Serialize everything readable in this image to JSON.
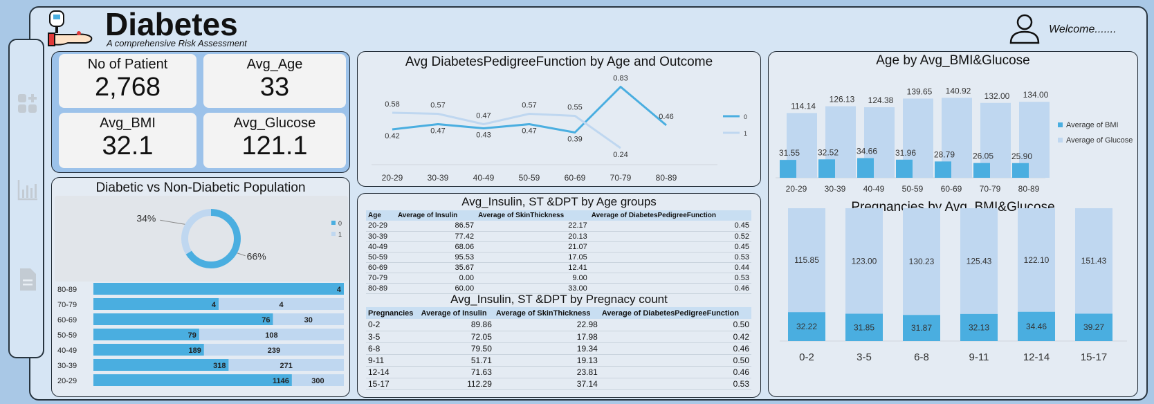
{
  "header": {
    "title": "Diabetes",
    "subtitle": "A comprehensive Risk Assessment",
    "welcome": "Welcome......."
  },
  "colors": {
    "primary": "#4aaee0",
    "secondary": "#bfd7f0",
    "panel": "#e4ebf3",
    "frame": "#d6e5f4"
  },
  "sidebar": {
    "items": [
      {
        "icon": "add-dashboard-icon"
      },
      {
        "icon": "bar-chart-icon"
      },
      {
        "icon": "document-icon"
      }
    ]
  },
  "kpis": [
    {
      "label": "No of Patient",
      "value": "2,768"
    },
    {
      "label": "Avg_Age",
      "value": "33"
    },
    {
      "label": "Avg_BMI",
      "value": "32.1"
    },
    {
      "label": "Avg_Glucose",
      "value": "121.1"
    }
  ],
  "population": {
    "title": "Diabetic vs Non-Diabetic Population",
    "donut": {
      "slices": [
        {
          "name": "0",
          "value": 66,
          "label": "66%"
        },
        {
          "name": "1",
          "value": 34,
          "label": "34%"
        }
      ]
    },
    "legend": [
      "0",
      "1"
    ],
    "age_bars": [
      {
        "age": "80-89",
        "v0": 4,
        "v1": 0,
        "l0": "4",
        "l1": ""
      },
      {
        "age": "70-79",
        "v0": 4,
        "v1": 4,
        "l0": "4",
        "l1": "4"
      },
      {
        "age": "60-69",
        "v0": 76,
        "v1": 30,
        "l0": "76",
        "l1": "30"
      },
      {
        "age": "50-59",
        "v0": 79,
        "v1": 108,
        "l0": "79",
        "l1": "108"
      },
      {
        "age": "40-49",
        "v0": 189,
        "v1": 239,
        "l0": "189",
        "l1": "239"
      },
      {
        "age": "30-39",
        "v0": 318,
        "v1": 271,
        "l0": "318",
        "l1": "271"
      },
      {
        "age": "20-29",
        "v0": 1146,
        "v1": 300,
        "l0": "1146",
        "l1": "300"
      }
    ]
  },
  "chart_data": [
    {
      "type": "line",
      "title": "Avg DiabetesPedigreeFunction by Age and Outcome",
      "categories": [
        "20-29",
        "30-39",
        "40-49",
        "50-59",
        "60-69",
        "70-79",
        "80-89"
      ],
      "series": [
        {
          "name": "0",
          "values": [
            0.42,
            0.47,
            0.43,
            0.47,
            0.39,
            0.83,
            0.46
          ],
          "labels": [
            "0.42",
            "0.47",
            "0.43",
            "0.47",
            "0.39",
            "0.83",
            "0.46"
          ]
        },
        {
          "name": "1",
          "values": [
            0.58,
            0.57,
            0.47,
            0.57,
            0.55,
            0.24,
            null
          ],
          "labels": [
            "0.58",
            "0.57",
            "0.47",
            "0.57",
            "0.55",
            "0.24",
            ""
          ]
        }
      ],
      "legend": "right"
    },
    {
      "type": "bar",
      "title": "Age by Avg_BMI&Glucose",
      "categories": [
        "20-29",
        "30-39",
        "40-49",
        "50-59",
        "60-69",
        "70-79",
        "80-89"
      ],
      "series": [
        {
          "name": "Average of BMI",
          "values": [
            31.55,
            32.52,
            34.66,
            31.96,
            28.79,
            26.05,
            25.9
          ],
          "labels": [
            "31.55",
            "32.52",
            "34.66",
            "31.96",
            "28.79",
            "26.05",
            "25.90"
          ]
        },
        {
          "name": "Average of Glucose",
          "values": [
            114.14,
            126.13,
            124.38,
            139.65,
            140.92,
            132.0,
            134.0
          ],
          "labels": [
            "114.14",
            "126.13",
            "124.38",
            "139.65",
            "140.92",
            "132.00",
            "134.00"
          ]
        }
      ],
      "legend": "right"
    },
    {
      "type": "bar",
      "title": "Pregnancies by Avg_BMI&Glucose",
      "categories": [
        "0-2",
        "3-5",
        "6-8",
        "9-11",
        "12-14",
        "15-17"
      ],
      "series": [
        {
          "name": "Average of BMI",
          "values": [
            32.22,
            31.85,
            31.87,
            32.13,
            34.46,
            39.27
          ],
          "labels": [
            "32.22",
            "31.85",
            "31.87",
            "32.13",
            "34.46",
            "39.27"
          ]
        },
        {
          "name": "Average of Glucose",
          "values": [
            115.85,
            123.0,
            130.23,
            125.43,
            122.1,
            151.43
          ],
          "labels": [
            "115.85",
            "123.00",
            "130.23",
            "125.43",
            "122.10",
            "151.43"
          ]
        }
      ],
      "stacked": true
    }
  ],
  "tables": {
    "age": {
      "title": "Avg_Insulin, ST &DPT by Age groups",
      "headers": [
        "Age",
        "Average of Insulin",
        "Average of SkinThickness",
        "Average of DiabetesPedigreeFunction"
      ],
      "rows": [
        [
          "20-29",
          "86.57",
          "22.17",
          "0.45"
        ],
        [
          "30-39",
          "77.42",
          "20.13",
          "0.52"
        ],
        [
          "40-49",
          "68.06",
          "21.07",
          "0.45"
        ],
        [
          "50-59",
          "95.53",
          "17.05",
          "0.53"
        ],
        [
          "60-69",
          "35.67",
          "12.41",
          "0.44"
        ],
        [
          "70-79",
          "0.00",
          "9.00",
          "0.53"
        ],
        [
          "80-89",
          "60.00",
          "33.00",
          "0.46"
        ]
      ]
    },
    "preg": {
      "title": "Avg_Insulin, ST &DPT by Pregnacy count",
      "headers": [
        "Pregnancies",
        "Average of Insulin",
        "Average of SkinThickness",
        "Average of DiabetesPedigreeFunction"
      ],
      "rows": [
        [
          "0-2",
          "89.86",
          "22.98",
          "0.50"
        ],
        [
          "3-5",
          "72.05",
          "17.98",
          "0.42"
        ],
        [
          "6-8",
          "79.50",
          "19.34",
          "0.46"
        ],
        [
          "9-11",
          "51.71",
          "19.13",
          "0.50"
        ],
        [
          "12-14",
          "71.63",
          "23.81",
          "0.46"
        ],
        [
          "15-17",
          "112.29",
          "37.14",
          "0.53"
        ]
      ]
    }
  }
}
